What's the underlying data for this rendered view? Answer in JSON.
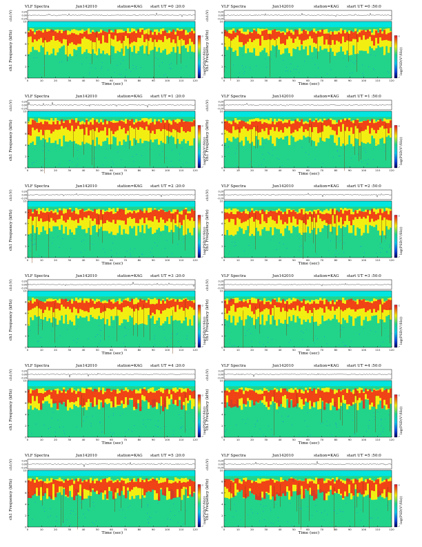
{
  "chart_data": [
    {
      "type": "heatmap",
      "title": "VLF Spectra",
      "date": "Jun142010",
      "station": "station=KAG",
      "start_ut": "start UT =0 :20:0",
      "ch_label": "ch1(V)",
      "ylabel": "ch1 Frequency (kHz)",
      "xlabel": "Time (sec)",
      "colorbar_label": "log(PSD(V²/Hz))",
      "xlim": [
        0,
        120
      ],
      "ylim_kHz": [
        0,
        10
      ],
      "x_ticks": [
        0,
        10,
        20,
        30,
        40,
        50,
        60,
        70,
        80,
        90,
        100,
        110,
        120
      ],
      "y_ticks": [
        0,
        2,
        4,
        6,
        8,
        10
      ],
      "trace_ticks": [
        "0.20",
        "0.00",
        "-0.20"
      ],
      "colorbar_ticks": [
        "-2",
        "-7"
      ]
    },
    {
      "type": "heatmap",
      "title": "VLF Spectra",
      "date": "Jun142010",
      "station": "station=KAG",
      "start_ut": "start UT =0 :50:0",
      "ch_label": "ch1(V)",
      "ylabel": "ch1 Frequency (kHz)",
      "xlabel": "Time (sec)",
      "colorbar_label": "log(PSD(V²/Hz))",
      "xlim": [
        0,
        120
      ],
      "ylim_kHz": [
        0,
        10
      ],
      "x_ticks": [
        0,
        10,
        20,
        30,
        40,
        50,
        60,
        70,
        80,
        90,
        100,
        110,
        120
      ],
      "y_ticks": [
        0,
        2,
        4,
        6,
        8,
        10
      ],
      "trace_ticks": [
        "0.20",
        "0.00",
        "-0.20"
      ],
      "colorbar_ticks": [
        "-2",
        "-7"
      ]
    },
    {
      "type": "heatmap",
      "title": "VLF Spectra",
      "date": "Jun142010",
      "station": "station=KAG",
      "start_ut": "start UT =1 :20:0",
      "ch_label": "ch1(V)",
      "ylabel": "ch1 Frequency (kHz)",
      "xlabel": "Time (sec)",
      "colorbar_label": "log(PSD(V²/Hz))",
      "xlim": [
        0,
        120
      ],
      "ylim_kHz": [
        0,
        10
      ],
      "x_ticks": [
        0,
        10,
        20,
        30,
        40,
        50,
        60,
        70,
        80,
        90,
        100,
        110,
        120
      ],
      "y_ticks": [
        0,
        2,
        4,
        6,
        8,
        10
      ],
      "trace_ticks": [
        "0.20",
        "0.00",
        "-0.20"
      ],
      "colorbar_ticks": [
        "-2",
        "-7"
      ]
    },
    {
      "type": "heatmap",
      "title": "VLF Spectra",
      "date": "Jun142010",
      "station": "station=KAG",
      "start_ut": "start UT =1 :50:0",
      "ch_label": "ch1(V)",
      "ylabel": "ch1 Frequency (kHz)",
      "xlabel": "Time (sec)",
      "colorbar_label": "log(PSD(V²/Hz))",
      "xlim": [
        0,
        120
      ],
      "ylim_kHz": [
        0,
        10
      ],
      "x_ticks": [
        0,
        10,
        20,
        30,
        40,
        50,
        60,
        70,
        80,
        90,
        100,
        110,
        120
      ],
      "y_ticks": [
        0,
        2,
        4,
        6,
        8,
        10
      ],
      "trace_ticks": [
        "0.20",
        "0.00",
        "-0.20"
      ],
      "colorbar_ticks": [
        "-2",
        "-7"
      ]
    },
    {
      "type": "heatmap",
      "title": "VLF Spectra",
      "date": "Jun142010",
      "station": "station=KAG",
      "start_ut": "start UT =2 :20:0",
      "ch_label": "ch1(V)",
      "ylabel": "ch1 Frequency (kHz)",
      "xlabel": "Time (sec)",
      "colorbar_label": "log(PSD(V²/Hz))",
      "xlim": [
        0,
        120
      ],
      "ylim_kHz": [
        0,
        10
      ],
      "x_ticks": [
        0,
        10,
        20,
        30,
        40,
        50,
        60,
        70,
        80,
        90,
        100,
        110,
        120
      ],
      "y_ticks": [
        0,
        2,
        4,
        6,
        8,
        10
      ],
      "trace_ticks": [
        "0.20",
        "0.00",
        "-0.20"
      ],
      "colorbar_ticks": [
        "-2",
        "-7"
      ]
    },
    {
      "type": "heatmap",
      "title": "VLF Spectra",
      "date": "Jun142010",
      "station": "station=KAG",
      "start_ut": "start UT =2 :50:0",
      "ch_label": "ch1(V)",
      "ylabel": "ch1 Frequency (kHz)",
      "xlabel": "Time (sec)",
      "colorbar_label": "log(PSD(V²/Hz))",
      "xlim": [
        0,
        120
      ],
      "ylim_kHz": [
        0,
        10
      ],
      "x_ticks": [
        0,
        10,
        20,
        30,
        40,
        50,
        60,
        70,
        80,
        90,
        100,
        110,
        120
      ],
      "y_ticks": [
        0,
        2,
        4,
        6,
        8,
        10
      ],
      "trace_ticks": [
        "0.20",
        "0.00",
        "-0.20"
      ],
      "colorbar_ticks": [
        "-2",
        "-7"
      ]
    },
    {
      "type": "heatmap",
      "title": "VLF Spectra",
      "date": "Jun142010",
      "station": "station=KAG",
      "start_ut": "start UT =3 :20:0",
      "ch_label": "ch1(V)",
      "ylabel": "ch1 Frequency (kHz)",
      "xlabel": "Time (sec)",
      "colorbar_label": "log(PSD(V²/Hz))",
      "xlim": [
        0,
        120
      ],
      "ylim_kHz": [
        0,
        10
      ],
      "x_ticks": [
        0,
        10,
        20,
        30,
        40,
        50,
        60,
        70,
        80,
        90,
        100,
        110,
        120
      ],
      "y_ticks": [
        0,
        2,
        4,
        6,
        8,
        10
      ],
      "trace_ticks": [
        "0.20",
        "0.00",
        "-0.20"
      ],
      "colorbar_ticks": [
        "-2",
        "-7"
      ]
    },
    {
      "type": "heatmap",
      "title": "VLF Spectra",
      "date": "Jun142010",
      "station": "station=KAG",
      "start_ut": "start UT =3 :50:0",
      "ch_label": "ch1(V)",
      "ylabel": "ch1 Frequency (kHz)",
      "xlabel": "Time (sec)",
      "colorbar_label": "log(PSD(V²/Hz))",
      "xlim": [
        0,
        120
      ],
      "ylim_kHz": [
        0,
        10
      ],
      "x_ticks": [
        0,
        10,
        20,
        30,
        40,
        50,
        60,
        70,
        80,
        90,
        100,
        110,
        120
      ],
      "y_ticks": [
        0,
        2,
        4,
        6,
        8,
        10
      ],
      "trace_ticks": [
        "0.20",
        "0.00",
        "-0.20"
      ],
      "colorbar_ticks": [
        "-2",
        "-7"
      ]
    },
    {
      "type": "heatmap",
      "title": "VLF Spectra",
      "date": "Jun142010",
      "station": "station=KAG",
      "start_ut": "start UT =4 :20:0",
      "ch_label": "ch1(V)",
      "ylabel": "ch1 Frequency (kHz)",
      "xlabel": "Time (sec)",
      "colorbar_label": "log(PSD(V²/Hz))",
      "xlim": [
        0,
        120
      ],
      "ylim_kHz": [
        0,
        10
      ],
      "x_ticks": [
        0,
        10,
        20,
        30,
        40,
        50,
        60,
        70,
        80,
        90,
        100,
        110,
        120
      ],
      "y_ticks": [
        0,
        2,
        4,
        6,
        8,
        10
      ],
      "trace_ticks": [
        "0.20",
        "0.00",
        "-0.20"
      ],
      "colorbar_ticks": [
        "-2",
        "-7"
      ]
    },
    {
      "type": "heatmap",
      "title": "VLF Spectra",
      "date": "Jun142010",
      "station": "station=KAG",
      "start_ut": "start UT =4 :50:0",
      "ch_label": "ch1(V)",
      "ylabel": "ch1 Frequency (kHz)",
      "xlabel": "Time (sec)",
      "colorbar_label": "log(PSD(V²/Hz))",
      "xlim": [
        0,
        120
      ],
      "ylim_kHz": [
        0,
        10
      ],
      "x_ticks": [
        0,
        10,
        20,
        30,
        40,
        50,
        60,
        70,
        80,
        90,
        100,
        110,
        120
      ],
      "y_ticks": [
        0,
        2,
        4,
        6,
        8,
        10
      ],
      "trace_ticks": [
        "0.20",
        "0.00",
        "-0.20"
      ],
      "colorbar_ticks": [
        "-2",
        "-7"
      ]
    },
    {
      "type": "heatmap",
      "title": "VLF Spectra",
      "date": "Jun142010",
      "station": "station=KAG",
      "start_ut": "start UT =5 :20:0",
      "ch_label": "ch1(V)",
      "ylabel": "ch1 Frequency (kHz)",
      "xlabel": "Time (sec)",
      "colorbar_label": "log(PSD(V²/Hz))",
      "xlim": [
        0,
        120
      ],
      "ylim_kHz": [
        0,
        10
      ],
      "x_ticks": [
        0,
        10,
        20,
        30,
        40,
        50,
        60,
        70,
        80,
        90,
        100,
        110,
        120
      ],
      "y_ticks": [
        0,
        2,
        4,
        6,
        8,
        10
      ],
      "trace_ticks": [
        "0.20",
        "0.00",
        "-0.20"
      ],
      "colorbar_ticks": [
        "-2",
        "-7"
      ]
    },
    {
      "type": "heatmap",
      "title": "VLF Spectra",
      "date": "Jun142010",
      "station": "station=KAG",
      "start_ut": "start UT =5 :50:0",
      "ch_label": "ch1(V)",
      "ylabel": "ch1 Frequency (kHz)",
      "xlabel": "Time (sec)",
      "colorbar_label": "log(PSD(V²/Hz))",
      "xlim": [
        0,
        120
      ],
      "ylim_kHz": [
        0,
        10
      ],
      "x_ticks": [
        0,
        10,
        20,
        30,
        40,
        50,
        60,
        70,
        80,
        90,
        100,
        110,
        120
      ],
      "y_ticks": [
        0,
        2,
        4,
        6,
        8,
        10
      ],
      "trace_ticks": [
        "0.20",
        "0.00",
        "-0.20"
      ],
      "colorbar_ticks": [
        "-2",
        "-7"
      ]
    }
  ],
  "colors": {
    "background_band": "#00e5e0",
    "low_band": "#22d48a",
    "mid_band": "#f2ee12",
    "high_band": "#f02418",
    "trace": "#222222"
  }
}
